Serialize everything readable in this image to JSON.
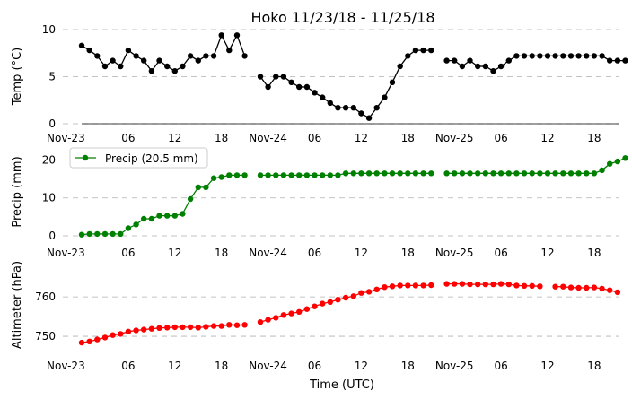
{
  "chart_data": [
    {
      "type": "line",
      "title": "Hoko 11/23/18 - 11/25/18",
      "ylabel": "Temp ($^\\circ$C)",
      "ylabel_display": "Temp (°C)",
      "xlabel": "",
      "ylim": [
        0,
        10
      ],
      "yticks": [
        "0",
        "5",
        "10"
      ],
      "grid": "horizontal dashed",
      "x_start": "Nov-23 00:00",
      "x_step_hours": 1,
      "xticks": [
        "Nov-23",
        "06",
        "12",
        "18",
        "Nov-24",
        "06",
        "12",
        "18",
        "Nov-25",
        "06",
        "12",
        "18"
      ],
      "series": [
        {
          "color": "#000000",
          "values": [
            8.3,
            7.8,
            7.2,
            6.1,
            6.7,
            6.1,
            7.8,
            7.2,
            6.7,
            5.6,
            6.7,
            6.1,
            5.6,
            6.1,
            7.2,
            6.7,
            7.2,
            7.2,
            9.4,
            7.8,
            9.4,
            7.2,
            null,
            5.0,
            3.9,
            5.0,
            5.0,
            4.4,
            3.9,
            3.9,
            3.3,
            2.8,
            2.2,
            1.7,
            1.7,
            1.7,
            1.1,
            0.6,
            1.7,
            2.8,
            4.4,
            6.1,
            7.2,
            7.8,
            7.8,
            7.8,
            null,
            6.7,
            6.7,
            6.1,
            6.7,
            6.1,
            6.1,
            5.6,
            6.1,
            6.7,
            7.2,
            7.2,
            7.2,
            7.2,
            7.2,
            7.2,
            7.2,
            7.2,
            7.2,
            7.2,
            7.2,
            7.2,
            6.7,
            6.7,
            6.7
          ]
        }
      ]
    },
    {
      "type": "line",
      "title": "",
      "ylabel": "Precip (mm)",
      "xlabel": "",
      "ylim": [
        0,
        22
      ],
      "yticks": [
        "0",
        "10",
        "20"
      ],
      "legend": {
        "position": "top-left",
        "label": "Precip (20.5 mm)"
      },
      "grid": "horizontal dashed",
      "xticks": [
        "Nov-23",
        "06",
        "12",
        "18",
        "Nov-24",
        "06",
        "12",
        "18",
        "Nov-25",
        "06",
        "12",
        "18"
      ],
      "series": [
        {
          "name": "Precip (20.5 mm)",
          "color": "#008000",
          "values": [
            0.3,
            0.5,
            0.5,
            0.5,
            0.5,
            0.5,
            2.0,
            3.0,
            4.5,
            4.5,
            5.3,
            5.3,
            5.3,
            5.8,
            9.7,
            12.8,
            12.8,
            15.2,
            15.5,
            16.0,
            16.0,
            16.0,
            null,
            16.0,
            16.0,
            16.0,
            16.0,
            16.0,
            16.0,
            16.0,
            16.0,
            16.0,
            16.0,
            16.0,
            16.5,
            16.5,
            16.5,
            16.5,
            16.5,
            16.5,
            16.5,
            16.5,
            16.5,
            16.5,
            16.5,
            16.5,
            null,
            16.5,
            16.5,
            16.5,
            16.5,
            16.5,
            16.5,
            16.5,
            16.5,
            16.5,
            16.5,
            16.5,
            16.5,
            16.5,
            16.5,
            16.5,
            16.5,
            16.5,
            16.5,
            16.5,
            16.5,
            17.3,
            19.0,
            19.6,
            20.5
          ]
        }
      ]
    },
    {
      "type": "line",
      "title": "",
      "ylabel": "Altimeter (hPa)",
      "xlabel": "Time (UTC)",
      "ylim": [
        745,
        768
      ],
      "yticks": [
        "750",
        "760"
      ],
      "grid": "horizontal dashed",
      "xticks": [
        "Nov-23",
        "06",
        "12",
        "18",
        "Nov-24",
        "06",
        "12",
        "18",
        "Nov-25",
        "06",
        "12",
        "18"
      ],
      "series": [
        {
          "color": "#ff0000",
          "values": [
            748.4,
            748.7,
            749.2,
            749.7,
            750.3,
            750.6,
            751.2,
            751.5,
            751.7,
            751.9,
            752.1,
            752.2,
            752.3,
            752.3,
            752.3,
            752.2,
            752.4,
            752.6,
            752.6,
            752.9,
            752.8,
            752.9,
            null,
            753.6,
            754.2,
            754.7,
            755.4,
            755.8,
            756.2,
            756.9,
            757.6,
            758.3,
            758.7,
            759.3,
            759.8,
            760.2,
            761.0,
            761.3,
            761.9,
            762.5,
            762.7,
            762.9,
            762.9,
            762.9,
            762.9,
            763.0,
            null,
            763.3,
            763.3,
            763.3,
            763.2,
            763.2,
            763.2,
            763.2,
            763.3,
            763.2,
            762.9,
            762.8,
            762.8,
            762.7,
            null,
            762.6,
            762.6,
            762.4,
            762.3,
            762.3,
            762.4,
            762.1,
            761.7,
            761.2
          ]
        }
      ]
    }
  ]
}
